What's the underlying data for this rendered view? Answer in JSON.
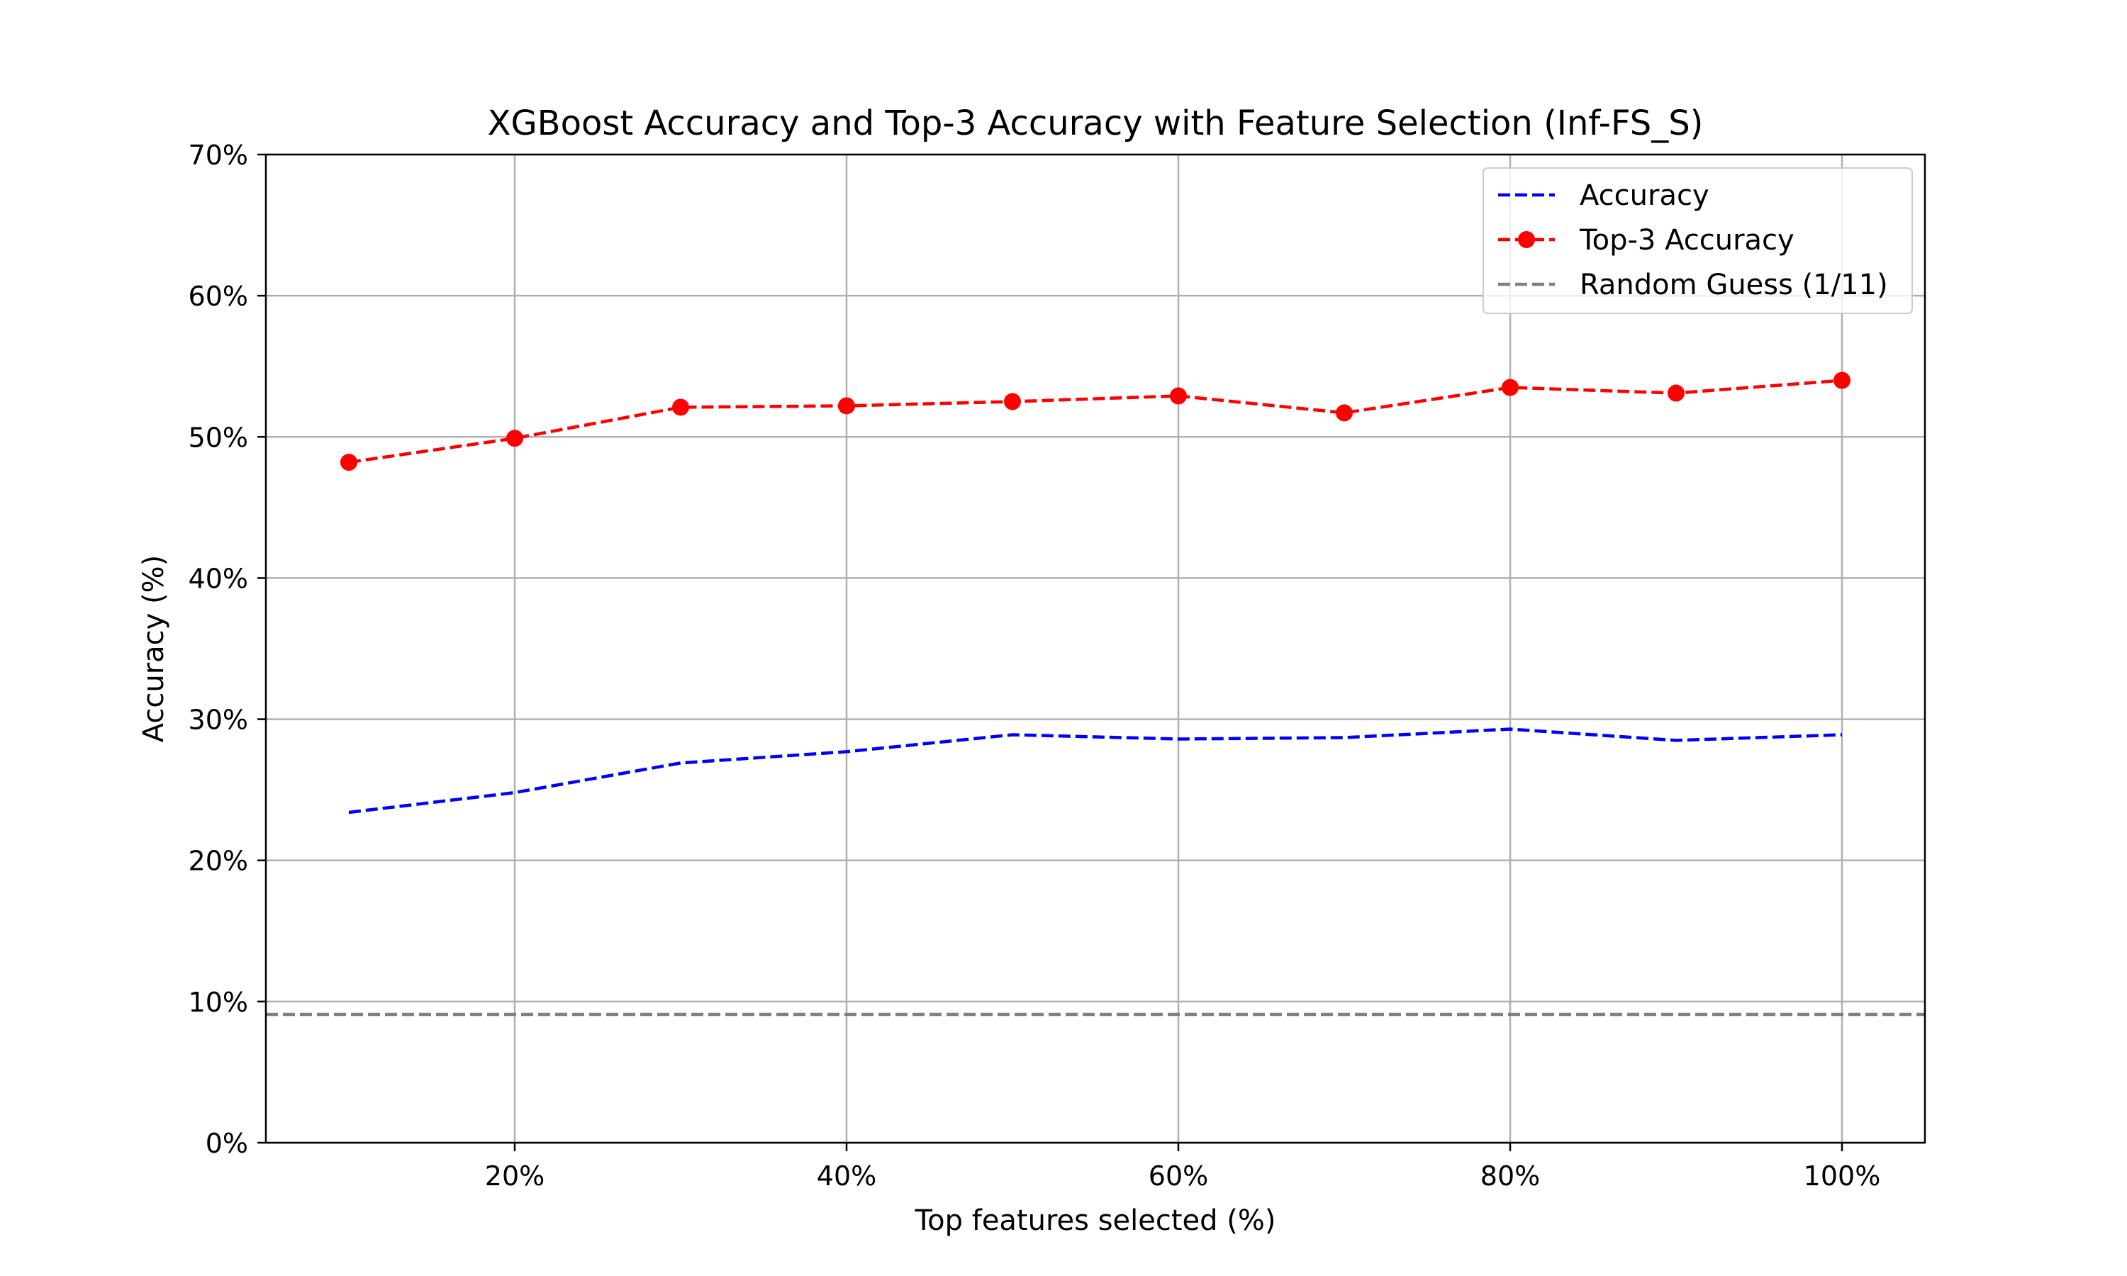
{
  "chart_data": {
    "type": "line",
    "title": "XGBoost Accuracy and Top-3 Accuracy with Feature Selection (Inf-FS_S)",
    "xlabel": "Top features selected (%)",
    "ylabel": "Accuracy (%)",
    "x": [
      10,
      20,
      30,
      40,
      50,
      60,
      70,
      80,
      90,
      100
    ],
    "xlim": [
      5,
      105
    ],
    "ylim": [
      0,
      70
    ],
    "xticks": [
      20,
      40,
      60,
      80,
      100
    ],
    "xtick_labels": [
      "20%",
      "40%",
      "60%",
      "80%",
      "100%"
    ],
    "yticks": [
      0,
      10,
      20,
      30,
      40,
      50,
      60,
      70
    ],
    "ytick_labels": [
      "0%",
      "10%",
      "20%",
      "30%",
      "40%",
      "50%",
      "60%",
      "70%"
    ],
    "grid": true,
    "legend_position": "top-right",
    "series": [
      {
        "name": "Accuracy",
        "color": "#0000ff",
        "style": "dashed",
        "marker": "none",
        "values": [
          23.4,
          24.8,
          26.9,
          27.7,
          28.9,
          28.6,
          28.7,
          29.3,
          28.5,
          28.9
        ]
      },
      {
        "name": "Top-3 Accuracy",
        "color": "#ff0000",
        "style": "dashed",
        "marker": "circle",
        "values": [
          48.2,
          49.9,
          52.1,
          52.2,
          52.5,
          52.9,
          51.7,
          53.5,
          53.1,
          54.0
        ]
      }
    ],
    "reference_lines": [
      {
        "name": "Random Guess (1/11)",
        "color": "#808080",
        "style": "dashed",
        "y": 9.09
      }
    ]
  }
}
